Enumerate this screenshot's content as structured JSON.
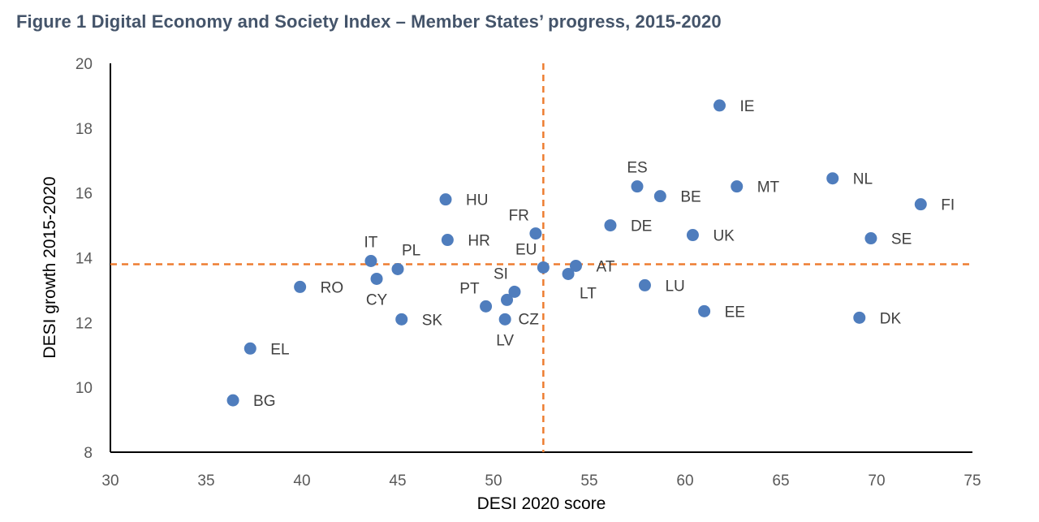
{
  "figure_title": "Figure 1 Digital Economy and Society Index – Member States’ progress, 2015-2020",
  "colors": {
    "point": "#4f7dbd",
    "reference_line": "#ed7d31",
    "axis": "#000000",
    "title": "#44546a"
  },
  "chart_data": {
    "type": "scatter",
    "xlabel": "DESI 2020 score",
    "ylabel": "DESI growth 2015-2020",
    "xlim": [
      30,
      75
    ],
    "ylim": [
      8,
      20
    ],
    "xticks": [
      30,
      35,
      40,
      45,
      50,
      55,
      60,
      65,
      70,
      75
    ],
    "yticks": [
      8,
      10,
      12,
      14,
      16,
      18,
      20
    ],
    "grid": false,
    "reference_lines": {
      "x": 52.6,
      "y": 13.8
    },
    "points": [
      {
        "label": "IE",
        "x": 61.8,
        "y": 18.7,
        "pos": "right"
      },
      {
        "label": "NL",
        "x": 67.7,
        "y": 16.45,
        "pos": "right"
      },
      {
        "label": "FI",
        "x": 72.3,
        "y": 15.65,
        "pos": "right"
      },
      {
        "label": "MT",
        "x": 62.7,
        "y": 16.2,
        "pos": "right"
      },
      {
        "label": "ES",
        "x": 57.5,
        "y": 16.2,
        "pos": "above"
      },
      {
        "label": "BE",
        "x": 58.7,
        "y": 15.9,
        "pos": "right"
      },
      {
        "label": "SE",
        "x": 69.7,
        "y": 14.6,
        "pos": "right"
      },
      {
        "label": "DE",
        "x": 56.1,
        "y": 15.0,
        "pos": "right"
      },
      {
        "label": "UK",
        "x": 60.4,
        "y": 14.7,
        "pos": "right"
      },
      {
        "label": "HU",
        "x": 47.5,
        "y": 15.8,
        "pos": "right"
      },
      {
        "label": "HR",
        "x": 47.6,
        "y": 14.55,
        "pos": "right"
      },
      {
        "label": "FR",
        "x": 52.2,
        "y": 14.75,
        "pos": "above-left"
      },
      {
        "label": "IT",
        "x": 43.6,
        "y": 13.9,
        "pos": "above"
      },
      {
        "label": "PL",
        "x": 45.0,
        "y": 13.65,
        "pos": "above-right"
      },
      {
        "label": "CY",
        "x": 43.9,
        "y": 13.35,
        "pos": "below"
      },
      {
        "label": "RO",
        "x": 39.9,
        "y": 13.1,
        "pos": "right"
      },
      {
        "label": "EU",
        "x": 52.6,
        "y": 13.7,
        "pos": "above-left"
      },
      {
        "label": "AT",
        "x": 54.3,
        "y": 13.75,
        "pos": "right"
      },
      {
        "label": "LT",
        "x": 53.9,
        "y": 13.5,
        "pos": "below-right"
      },
      {
        "label": "SI",
        "x": 51.1,
        "y": 12.95,
        "pos": "above-left"
      },
      {
        "label": "CZ",
        "x": 50.7,
        "y": 12.7,
        "pos": "below-right"
      },
      {
        "label": "PT",
        "x": 49.6,
        "y": 12.5,
        "pos": "above-left"
      },
      {
        "label": "LV",
        "x": 50.6,
        "y": 12.1,
        "pos": "below"
      },
      {
        "label": "SK",
        "x": 45.2,
        "y": 12.1,
        "pos": "right"
      },
      {
        "label": "LU",
        "x": 57.9,
        "y": 13.15,
        "pos": "right"
      },
      {
        "label": "EE",
        "x": 61.0,
        "y": 12.35,
        "pos": "right"
      },
      {
        "label": "DK",
        "x": 69.1,
        "y": 12.15,
        "pos": "right"
      },
      {
        "label": "EL",
        "x": 37.3,
        "y": 11.2,
        "pos": "right"
      },
      {
        "label": "BG",
        "x": 36.4,
        "y": 9.6,
        "pos": "right"
      }
    ]
  }
}
